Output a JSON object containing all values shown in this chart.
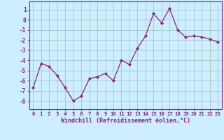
{
  "x": [
    0,
    1,
    2,
    3,
    4,
    5,
    6,
    7,
    8,
    9,
    10,
    11,
    12,
    13,
    14,
    15,
    16,
    17,
    18,
    19,
    20,
    21,
    22,
    23
  ],
  "y": [
    -6.7,
    -4.3,
    -4.6,
    -5.5,
    -6.7,
    -8.0,
    -7.5,
    -5.8,
    -5.6,
    -5.3,
    -6.0,
    -4.0,
    -4.4,
    -2.8,
    -1.6,
    0.6,
    -0.3,
    1.1,
    -1.0,
    -1.7,
    -1.6,
    -1.7,
    -1.9,
    -2.2
  ],
  "line_color": "#882288",
  "marker": "D",
  "marker_size": 2.0,
  "bg_color": "#cceeff",
  "grid_color": "#aacccc",
  "xlabel": "Windchill (Refroidissement éolien,°C)",
  "xlabel_color": "#882288",
  "ylabel_ticks": [
    1,
    0,
    -1,
    -2,
    -3,
    -4,
    -5,
    -6,
    -7,
    -8
  ],
  "xtick_labels": [
    "0",
    "1",
    "2",
    "3",
    "4",
    "5",
    "6",
    "7",
    "8",
    "9",
    "10",
    "11",
    "12",
    "13",
    "14",
    "15",
    "16",
    "17",
    "18",
    "19",
    "20",
    "21",
    "22",
    "23"
  ],
  "xlim": [
    -0.5,
    23.5
  ],
  "ylim": [
    -8.8,
    1.8
  ],
  "tick_color": "#882288",
  "spine_color": "#882288",
  "tick_fontsize": 5.2,
  "xlabel_fontsize": 6.0
}
